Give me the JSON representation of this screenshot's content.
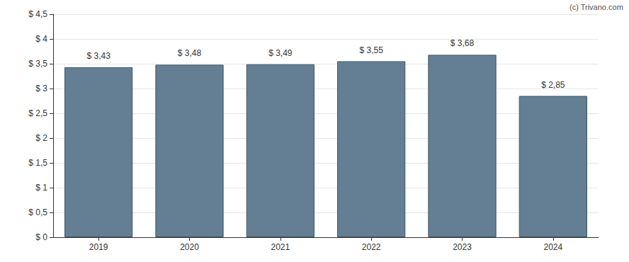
{
  "chart_data": {
    "type": "bar",
    "annotations": [
      "(c) Trivano.com"
    ],
    "categories": [
      "2019",
      "2020",
      "2021",
      "2022",
      "2023",
      "2024"
    ],
    "values": [
      3.43,
      3.48,
      3.49,
      3.55,
      3.68,
      2.85
    ],
    "value_labels": [
      "$ 3,43",
      "$ 3,48",
      "$ 3,49",
      "$ 3,55",
      "$ 3,68",
      "$ 2,85"
    ],
    "data_labels": true,
    "color": "#647f93",
    "ylim": [
      0,
      4.5
    ],
    "yticks": [
      {
        "value": 0,
        "label": "$ 0"
      },
      {
        "value": 0.5,
        "label": "$ 0,5"
      },
      {
        "value": 1,
        "label": "$ 1"
      },
      {
        "value": 1.5,
        "label": "$ 1,5"
      },
      {
        "value": 2,
        "label": "$ 2"
      },
      {
        "value": 2.5,
        "label": "$ 2,5"
      },
      {
        "value": 3,
        "label": "$ 3"
      },
      {
        "value": 3.5,
        "label": "$ 3,5"
      },
      {
        "value": 4,
        "label": "$ 4"
      },
      {
        "value": 4.5,
        "label": "$ 4,5"
      }
    ],
    "grid": true
  }
}
